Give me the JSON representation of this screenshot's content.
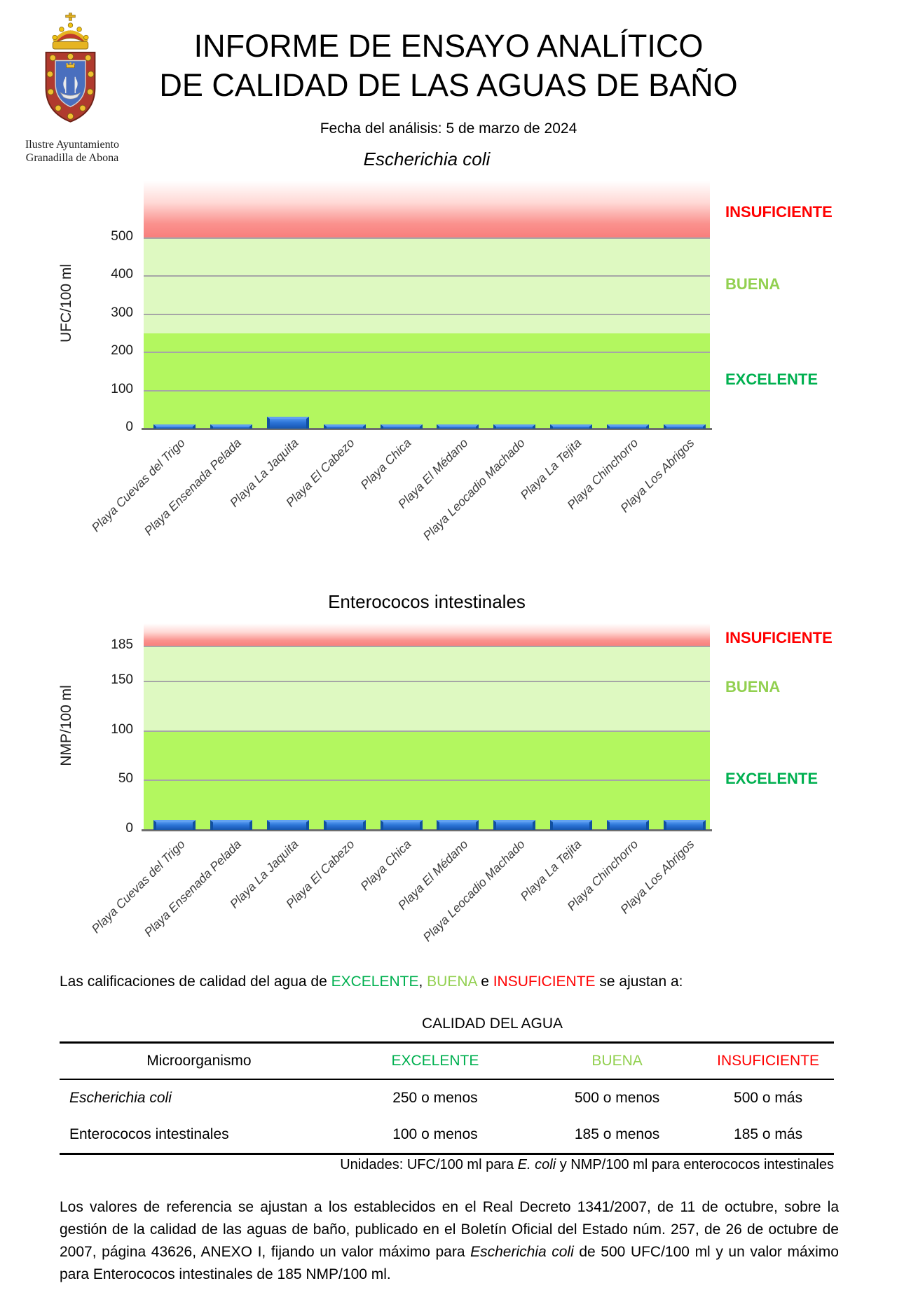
{
  "header": {
    "org_name_line1": "Ilustre Ayuntamiento",
    "org_name_line2": "Granadilla de Abona",
    "title_line1": "INFORME DE ENSAYO ANALÍTICO",
    "title_line2": "DE CALIDAD DE LAS AGUAS DE BAÑO",
    "analysis_date": "Fecha del análisis: 5 de marzo de 2024"
  },
  "chart_data": [
    {
      "type": "bar",
      "title": "Escherichia coli",
      "title_italic": true,
      "ylabel": "UFC/100 ml",
      "categories": [
        "Playa Cuevas del Trigo",
        "Playa Ensenada Pelada",
        "Playa La Jaquita",
        "Playa El Cabezo",
        "Playa Chica",
        "Playa El Médano",
        "Playa Leocadio Machado",
        "Playa La Tejita",
        "Playa Chinchorro",
        "Playa Los Abrigos"
      ],
      "values": [
        5,
        5,
        25,
        5,
        5,
        5,
        5,
        5,
        5,
        5
      ],
      "yticks": [
        0,
        100,
        200,
        300,
        400,
        500
      ],
      "ylim": [
        0,
        650
      ],
      "grid": true,
      "legend_position": "right",
      "bar_color": "#2268cc",
      "zones": [
        {
          "label": "EXCELENTE",
          "from": 0,
          "to": 250,
          "band_color": "#b3f75f",
          "label_color": "#00b050"
        },
        {
          "label": "BUENA",
          "from": 250,
          "to": 500,
          "band_color": "#def9c1",
          "label_color": "#92d050"
        },
        {
          "label": "INSUFICIENTE",
          "from": 500,
          "to": 650,
          "band_color": "red_gradient",
          "label_color": "#ff0000"
        }
      ]
    },
    {
      "type": "bar",
      "title": "Enterococos intestinales",
      "title_italic": false,
      "ylabel": "NMP/100 ml",
      "categories": [
        "Playa Cuevas del Trigo",
        "Playa Ensenada Pelada",
        "Playa La Jaquita",
        "Playa El Cabezo",
        "Playa Chica",
        "Playa El Médano",
        "Playa Leocadio Machado",
        "Playa La Tejita",
        "Playa Chinchorro",
        "Playa Los Abrigos"
      ],
      "values": [
        8,
        8,
        8,
        8,
        8,
        8,
        8,
        8,
        8,
        8
      ],
      "yticks": [
        0,
        50,
        100,
        150,
        185
      ],
      "ylim": [
        0,
        208.5
      ],
      "grid": true,
      "legend_position": "right",
      "bar_color": "#2268cc",
      "zones": [
        {
          "label": "EXCELENTE",
          "from": 0,
          "to": 100,
          "band_color": "#b3f75f",
          "label_color": "#00b050"
        },
        {
          "label": "BUENA",
          "from": 100,
          "to": 185,
          "band_color": "#def9c1",
          "label_color": "#92d050"
        },
        {
          "label": "INSUFICIENTE",
          "from": 185,
          "to": 208.5,
          "band_color": "red_gradient",
          "label_color": "#ff0000"
        }
      ]
    }
  ],
  "intro": {
    "pre": "Las calificaciones de calidad del agua de ",
    "word_excelente": "EXCELENTE",
    "comma": ", ",
    "word_buena": "BUENA",
    "conj": " e ",
    "word_insuficiente": "INSUFICIENTE",
    "post": " se ajustan a:"
  },
  "quality_table": {
    "super_header": "CALIDAD DEL AGUA",
    "columns": [
      "Microorganismo",
      "EXCELENTE",
      "BUENA",
      "INSUFICIENTE"
    ],
    "column_colors": [
      "#000000",
      "#00b050",
      "#92d050",
      "#ff0000"
    ],
    "rows": [
      {
        "name": "Escherichia coli",
        "name_italic": true,
        "values": [
          "250 o menos",
          "500 o menos",
          "500 o más"
        ]
      },
      {
        "name": "Enterococos intestinales",
        "name_italic": false,
        "values": [
          "100 o menos",
          "185 o menos",
          "185 o más"
        ]
      }
    ],
    "units_note": {
      "pre": "Unidades: UFC/100 ml para ",
      "italic_part": "E. coli",
      "post": " y NMP/100 ml para enterococos intestinales"
    }
  },
  "footer": {
    "pre": "Los valores de referencia se ajustan a los establecidos en el Real Decreto 1341/2007, de 11 de octubre, sobre la gestión de la calidad de las aguas de baño, publicado en el Boletín Oficial del Estado núm. 257, de 26 de octubre de 2007, página 43626, ANEXO I, fijando un valor máximo para ",
    "italic_part": "Escherichia coli",
    "post": " de 500 UFC/100 ml y un valor máximo para Enterococos intestinales de 185 NMP/100 ml."
  }
}
